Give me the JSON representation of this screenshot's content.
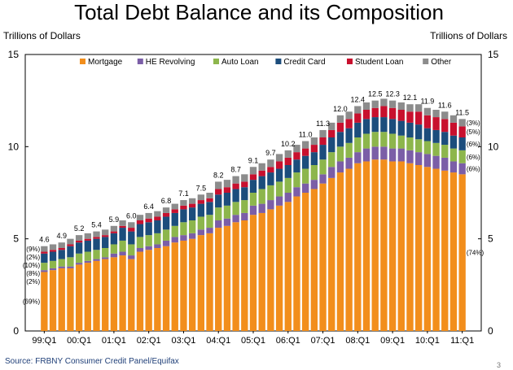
{
  "chart_data": {
    "type": "bar",
    "stacked": true,
    "title": "Total Debt Balance and its Composition",
    "ylabel_left": "Trillions of Dollars",
    "ylabel_right": "Trillions of Dollars",
    "ylim": [
      0,
      15
    ],
    "yticks": [
      "0",
      "5",
      "10",
      "15"
    ],
    "grid": false,
    "legend_position": "top",
    "source": "Source: FRBNY Consumer Credit Panel/Equifax",
    "page_number": "3",
    "categories": [
      "99:Q1",
      "99:Q2",
      "99:Q3",
      "99:Q4",
      "00:Q1",
      "00:Q2",
      "00:Q3",
      "00:Q4",
      "01:Q1",
      "01:Q2",
      "01:Q3",
      "01:Q4",
      "02:Q1",
      "02:Q2",
      "02:Q3",
      "02:Q4",
      "03:Q1",
      "03:Q2",
      "03:Q3",
      "03:Q4",
      "04:Q1",
      "04:Q2",
      "04:Q3",
      "04:Q4",
      "05:Q1",
      "05:Q2",
      "05:Q3",
      "05:Q4",
      "06:Q1",
      "06:Q2",
      "06:Q3",
      "06:Q4",
      "07:Q1",
      "07:Q2",
      "07:Q3",
      "07:Q4",
      "08:Q1",
      "08:Q2",
      "08:Q3",
      "08:Q4",
      "09:Q1",
      "09:Q2",
      "09:Q3",
      "09:Q4",
      "10:Q1",
      "10:Q2",
      "10:Q3",
      "10:Q4",
      "11:Q1"
    ],
    "xtick_labels": [
      "99:Q1",
      "00:Q1",
      "01:Q1",
      "02:Q1",
      "03:Q1",
      "04:Q1",
      "05:Q1",
      "06:Q1",
      "07:Q1",
      "08:Q1",
      "09:Q1",
      "10:Q1",
      "11:Q1"
    ],
    "series": [
      {
        "name": "Mortgage",
        "color": "#f28e1c",
        "values": [
          3.2,
          3.3,
          3.4,
          3.4,
          3.6,
          3.7,
          3.8,
          3.9,
          4.0,
          4.1,
          3.9,
          4.3,
          4.4,
          4.5,
          4.6,
          4.8,
          4.9,
          5.0,
          5.2,
          5.3,
          5.6,
          5.7,
          5.9,
          6.0,
          6.3,
          6.4,
          6.6,
          6.8,
          7.0,
          7.3,
          7.5,
          7.7,
          8.0,
          8.3,
          8.6,
          8.8,
          9.1,
          9.2,
          9.3,
          9.3,
          9.2,
          9.2,
          9.1,
          9.0,
          8.9,
          8.8,
          8.7,
          8.6,
          8.5
        ]
      },
      {
        "name": "HE Revolving",
        "color": "#7b5ea7",
        "values": [
          0.1,
          0.1,
          0.1,
          0.1,
          0.1,
          0.1,
          0.1,
          0.1,
          0.2,
          0.2,
          0.2,
          0.2,
          0.2,
          0.2,
          0.3,
          0.3,
          0.3,
          0.3,
          0.3,
          0.3,
          0.4,
          0.4,
          0.4,
          0.4,
          0.5,
          0.5,
          0.5,
          0.5,
          0.5,
          0.5,
          0.5,
          0.5,
          0.5,
          0.6,
          0.6,
          0.6,
          0.6,
          0.7,
          0.7,
          0.7,
          0.7,
          0.7,
          0.7,
          0.7,
          0.7,
          0.7,
          0.7,
          0.6,
          0.6
        ]
      },
      {
        "name": "Auto Loan",
        "color": "#8db64c",
        "values": [
          0.4,
          0.4,
          0.4,
          0.5,
          0.5,
          0.5,
          0.5,
          0.5,
          0.5,
          0.6,
          0.6,
          0.6,
          0.6,
          0.6,
          0.6,
          0.6,
          0.7,
          0.7,
          0.7,
          0.7,
          0.7,
          0.7,
          0.7,
          0.7,
          0.7,
          0.8,
          0.8,
          0.8,
          0.8,
          0.8,
          0.8,
          0.8,
          0.8,
          0.8,
          0.8,
          0.8,
          0.8,
          0.8,
          0.8,
          0.8,
          0.8,
          0.7,
          0.7,
          0.7,
          0.7,
          0.7,
          0.7,
          0.7,
          0.7
        ]
      },
      {
        "name": "Credit Card",
        "color": "#1c4d7c",
        "values": [
          0.5,
          0.5,
          0.5,
          0.6,
          0.6,
          0.6,
          0.6,
          0.6,
          0.6,
          0.7,
          0.7,
          0.7,
          0.7,
          0.7,
          0.7,
          0.7,
          0.7,
          0.7,
          0.7,
          0.7,
          0.7,
          0.7,
          0.7,
          0.7,
          0.7,
          0.7,
          0.7,
          0.7,
          0.7,
          0.7,
          0.7,
          0.7,
          0.8,
          0.8,
          0.8,
          0.8,
          0.8,
          0.8,
          0.8,
          0.8,
          0.8,
          0.8,
          0.8,
          0.8,
          0.7,
          0.7,
          0.7,
          0.7,
          0.7
        ]
      },
      {
        "name": "Student Loan",
        "color": "#c8102e",
        "values": [
          0.1,
          0.1,
          0.1,
          0.1,
          0.1,
          0.1,
          0.1,
          0.1,
          0.1,
          0.1,
          0.2,
          0.2,
          0.2,
          0.2,
          0.2,
          0.2,
          0.2,
          0.2,
          0.2,
          0.2,
          0.3,
          0.3,
          0.3,
          0.3,
          0.3,
          0.3,
          0.3,
          0.4,
          0.4,
          0.4,
          0.4,
          0.4,
          0.4,
          0.4,
          0.5,
          0.5,
          0.5,
          0.5,
          0.5,
          0.6,
          0.6,
          0.6,
          0.6,
          0.7,
          0.7,
          0.7,
          0.7,
          0.7,
          0.6
        ]
      },
      {
        "name": "Other",
        "color": "#8c8c8c",
        "values": [
          0.3,
          0.3,
          0.3,
          0.3,
          0.3,
          0.3,
          0.3,
          0.3,
          0.3,
          0.3,
          0.3,
          0.3,
          0.3,
          0.3,
          0.3,
          0.3,
          0.3,
          0.3,
          0.3,
          0.3,
          0.4,
          0.4,
          0.4,
          0.4,
          0.4,
          0.4,
          0.4,
          0.4,
          0.4,
          0.4,
          0.4,
          0.4,
          0.4,
          0.4,
          0.4,
          0.4,
          0.4,
          0.4,
          0.4,
          0.4,
          0.4,
          0.4,
          0.4,
          0.4,
          0.4,
          0.4,
          0.4,
          0.4,
          0.4
        ]
      }
    ],
    "total_labels": [
      {
        "index": 0,
        "text": "4.6"
      },
      {
        "index": 4,
        "text": "4.9"
      },
      {
        "index": 8,
        "text": "5.2"
      },
      {
        "index": 12,
        "text": "5.4"
      },
      {
        "index": 16,
        "text": "5.9"
      },
      {
        "index": 20,
        "text": "6.0"
      },
      {
        "index": 24,
        "text": "6.4"
      },
      {
        "index": 28,
        "text": "6.8"
      },
      {
        "index": 32,
        "text": "7.1"
      },
      {
        "index": 36,
        "text": "7.5"
      },
      {
        "index": 40,
        "text": "8.2"
      },
      {
        "index": 44,
        "text": "8.7"
      },
      {
        "index": 48,
        "text": "9.1"
      },
      {
        "index": 52,
        "text": "9.7"
      },
      {
        "index": 56,
        "text": "10.2"
      },
      {
        "index": 60,
        "text": "11.0"
      },
      {
        "index": 64,
        "text": "11.3"
      },
      {
        "index": 68,
        "text": "12.0"
      },
      {
        "index": 72,
        "text": "12.4"
      },
      {
        "index": 76,
        "text": "12.5"
      },
      {
        "index": 80,
        "text": "12.3"
      },
      {
        "index": 84,
        "text": "12.1"
      },
      {
        "index": 88,
        "text": "11.9"
      },
      {
        "index": 92,
        "text": "11.6"
      },
      {
        "index": 96,
        "text": "11.5"
      }
    ],
    "share_labels_left": [
      "(9%)",
      "(2%)",
      "(10%)",
      "(8%)",
      "(2%)",
      "(69%)"
    ],
    "share_labels_right": [
      "(3%)",
      "(5%)",
      "(6%)",
      "(6%)",
      "(6%)",
      "(74%)"
    ]
  }
}
